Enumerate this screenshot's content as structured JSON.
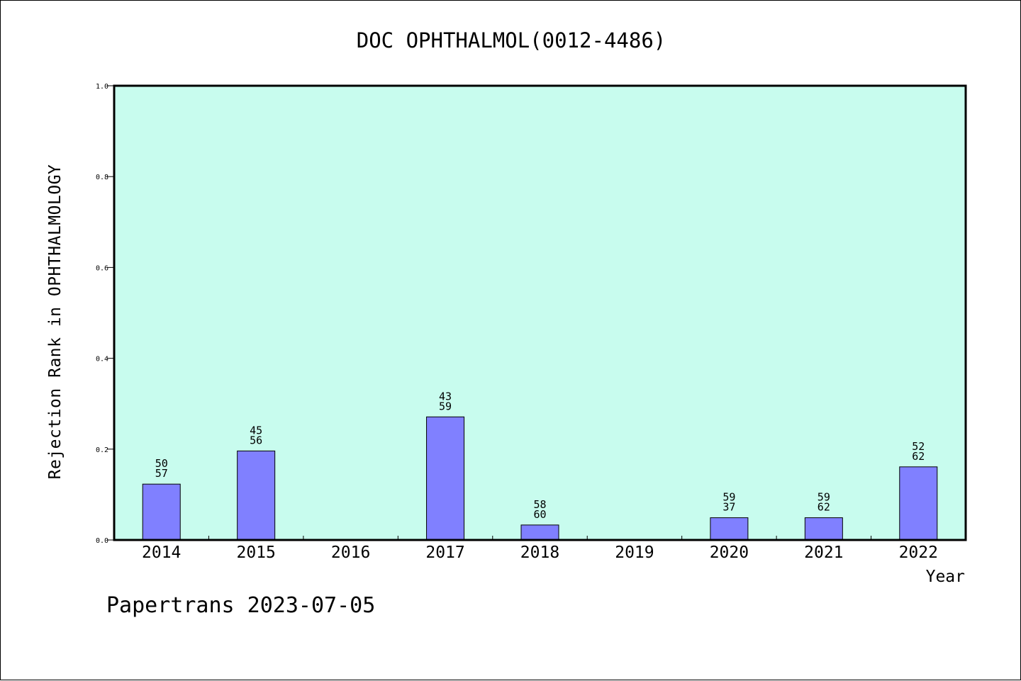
{
  "chart_data": {
    "type": "bar",
    "title": "DOC OPHTHALMOL(0012-4486)",
    "xlabel": "Year",
    "ylabel": "Rejection Rank in OPHTHALMOLOGY",
    "ylim": [
      0,
      1.0
    ],
    "yticks": [
      "0.0",
      "0.2",
      "0.4",
      "0.6",
      "0.8",
      "1.0"
    ],
    "grid": false,
    "categories": [
      "2014",
      "2015",
      "2016",
      "2017",
      "2018",
      "2019",
      "2020",
      "2021",
      "2022"
    ],
    "values": [
      0.123,
      0.196,
      null,
      0.271,
      0.033,
      null,
      0.049,
      0.049,
      0.161
    ],
    "labels_top": [
      "50",
      "45",
      "",
      "43",
      "58",
      "",
      "59",
      "59",
      "52"
    ],
    "labels_bottom": [
      "57",
      "56",
      "",
      "59",
      "60",
      "",
      "37",
      "62",
      "62"
    ],
    "bar_color": "#8080ff",
    "plot_background": "#c8fcee"
  },
  "footer": "Papertrans 2023-07-05"
}
